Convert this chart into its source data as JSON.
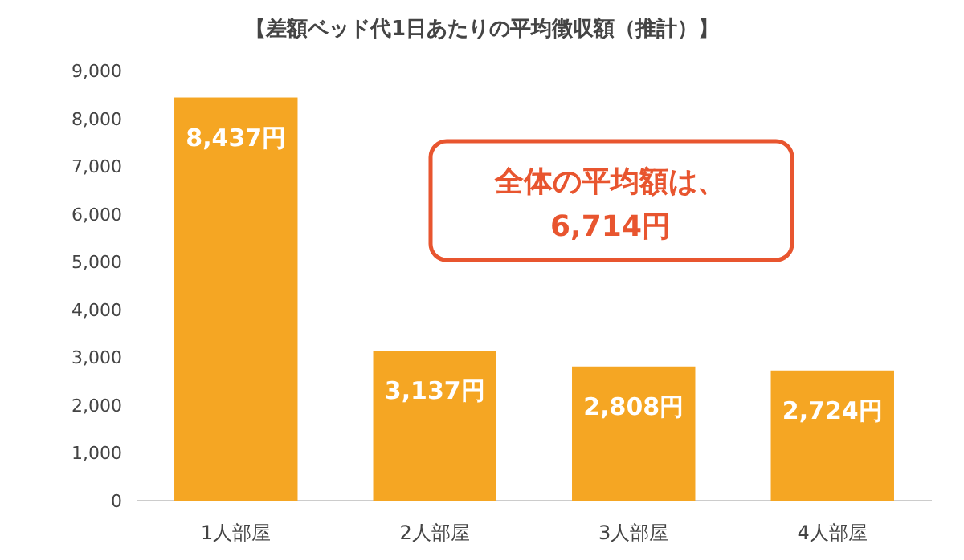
{
  "chart_data": {
    "type": "bar",
    "title": "【差額ベッド代1日あたりの平均徴収額（推計）】",
    "categories": [
      "1人部屋",
      "2人部屋",
      "3人部屋",
      "4人部屋"
    ],
    "values": [
      8437,
      3137,
      2808,
      2724
    ],
    "value_labels": [
      "8,437円",
      "3,137円",
      "2,808円",
      "2,724円"
    ],
    "color": "#f5a623",
    "ylim": [
      0,
      9000
    ],
    "yticks": [
      {
        "value": 0,
        "label": "0"
      },
      {
        "value": 1000,
        "label": "1,000"
      },
      {
        "value": 2000,
        "label": "2,000"
      },
      {
        "value": 3000,
        "label": "3,000"
      },
      {
        "value": 4000,
        "label": "4,000"
      },
      {
        "value": 5000,
        "label": "5,000"
      },
      {
        "value": 6000,
        "label": "6,000"
      },
      {
        "value": 7000,
        "label": "7,000"
      },
      {
        "value": 8000,
        "label": "8,000"
      },
      {
        "value": 9000,
        "label": "9,000"
      }
    ],
    "grid": false,
    "annotations": [
      "全体の平均額は、\n6,714円"
    ]
  }
}
